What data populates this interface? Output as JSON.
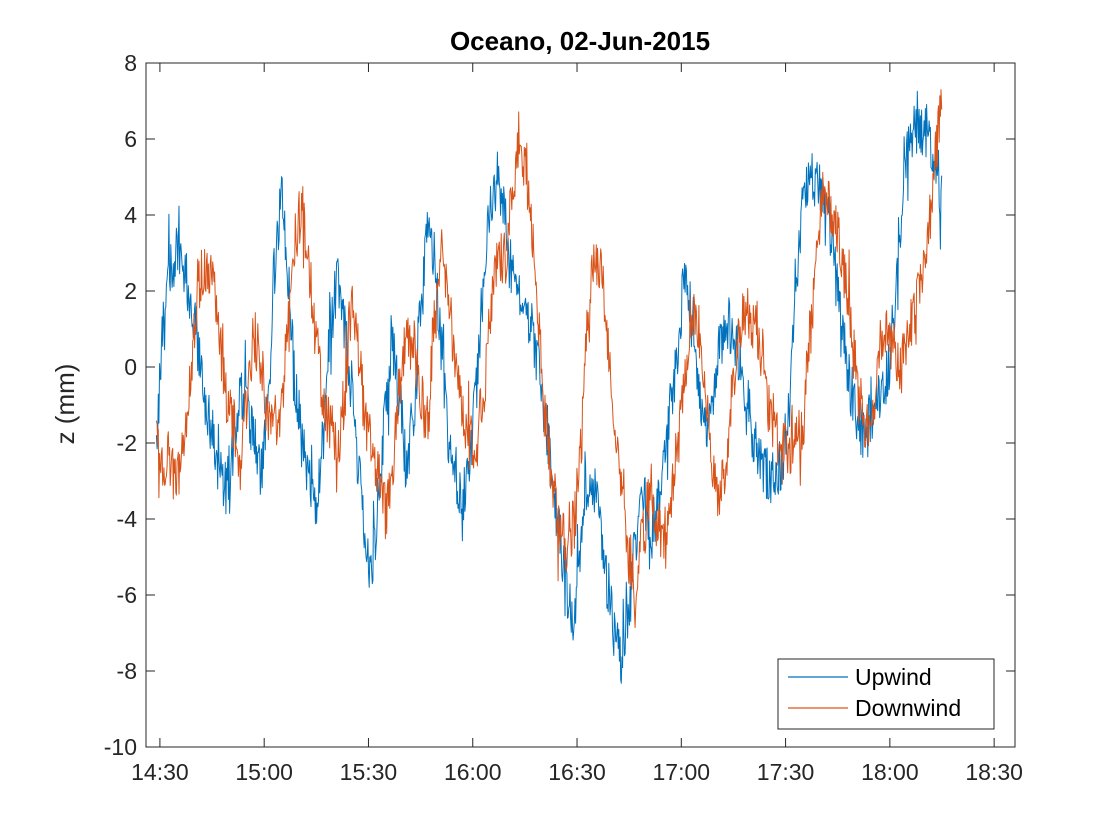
{
  "chart_data": {
    "type": "line",
    "title": "Oceano, 02-Jun-2015",
    "xlabel": "",
    "ylabel": "z (mm)",
    "x_unit": "time of day (HH:MM)",
    "xlim": [
      "14:26",
      "18:36"
    ],
    "ylim": [
      -10,
      8
    ],
    "x_ticks": [
      "14:30",
      "15:00",
      "15:30",
      "16:00",
      "16:30",
      "17:00",
      "17:30",
      "18:00",
      "18:30"
    ],
    "y_ticks": [
      -10,
      -8,
      -6,
      -4,
      -2,
      0,
      2,
      4,
      6,
      8
    ],
    "grid": false,
    "legend": "bottom-right",
    "series": [
      {
        "name": "Upwind",
        "color": "#0072BD",
        "x": [
          "14:29",
          "14:31",
          "14:33",
          "14:35",
          "14:37",
          "14:39",
          "14:41",
          "14:43",
          "14:45",
          "14:47",
          "14:49",
          "14:51",
          "14:53",
          "14:55",
          "14:57",
          "14:59",
          "15:01",
          "15:03",
          "15:05",
          "15:07",
          "15:09",
          "15:11",
          "15:13",
          "15:15",
          "15:17",
          "15:19",
          "15:21",
          "15:23",
          "15:25",
          "15:27",
          "15:29",
          "15:31",
          "15:33",
          "15:35",
          "15:37",
          "15:39",
          "15:41",
          "15:43",
          "15:45",
          "15:47",
          "15:49",
          "15:51",
          "15:53",
          "15:55",
          "15:57",
          "15:59",
          "16:01",
          "16:03",
          "16:05",
          "16:07",
          "16:09",
          "16:11",
          "16:13",
          "16:15",
          "16:17",
          "16:19",
          "16:21",
          "16:23",
          "16:25",
          "16:27",
          "16:29",
          "16:31",
          "16:33",
          "16:35",
          "16:37",
          "16:39",
          "16:41",
          "16:43",
          "16:45",
          "16:47",
          "16:49",
          "16:51",
          "16:53",
          "16:55",
          "16:57",
          "16:59",
          "17:01",
          "17:03",
          "17:05",
          "17:07",
          "17:09",
          "17:11",
          "17:13",
          "17:15",
          "17:17",
          "17:19",
          "17:21",
          "17:23",
          "17:25",
          "17:27",
          "17:29",
          "17:31",
          "17:33",
          "17:35",
          "17:37",
          "17:39",
          "17:41",
          "17:43",
          "17:45",
          "17:47",
          "17:49",
          "17:51",
          "17:53",
          "17:55",
          "17:57",
          "17:59",
          "18:01",
          "18:03",
          "18:05",
          "18:07",
          "18:09",
          "18:11",
          "18:13",
          "18:15"
        ],
        "y": [
          -1.5,
          1.0,
          2.6,
          3.0,
          2.5,
          1.8,
          0.5,
          -0.8,
          -1.8,
          -2.6,
          -3.2,
          -2.2,
          -0.8,
          -1.0,
          -2.0,
          -2.8,
          -1.0,
          2.5,
          4.5,
          2.2,
          -0.5,
          -2.0,
          -3.0,
          -3.6,
          -2.0,
          1.0,
          2.2,
          1.2,
          -0.5,
          -2.5,
          -4.8,
          -5.2,
          -3.5,
          -1.2,
          0.5,
          -0.8,
          -2.6,
          -1.2,
          1.5,
          3.8,
          2.8,
          0.5,
          -1.8,
          -2.8,
          -3.4,
          -2.5,
          -0.5,
          1.8,
          4.2,
          5.0,
          4.0,
          2.6,
          2.2,
          1.8,
          1.0,
          0.0,
          -1.5,
          -3.0,
          -4.5,
          -6.0,
          -6.6,
          -5.0,
          -3.0,
          -3.4,
          -4.4,
          -5.8,
          -7.0,
          -7.8,
          -6.2,
          -4.5,
          -3.4,
          -4.5,
          -3.8,
          -2.5,
          -1.0,
          0.5,
          2.4,
          1.5,
          -0.5,
          -1.6,
          -0.8,
          0.5,
          1.2,
          0.8,
          0.2,
          -1.0,
          -2.0,
          -2.5,
          -2.8,
          -3.0,
          -2.5,
          -1.2,
          2.0,
          4.5,
          5.0,
          4.8,
          4.5,
          3.5,
          2.0,
          0.5,
          -0.8,
          -1.5,
          -1.8,
          -1.2,
          -0.8,
          -0.3,
          1.0,
          3.5,
          5.8,
          6.2,
          6.3,
          6.2,
          5.5,
          4.5
        ]
      },
      {
        "name": "Downwind",
        "color": "#D95319",
        "x": [
          "14:29",
          "14:31",
          "14:33",
          "14:35",
          "14:37",
          "14:39",
          "14:41",
          "14:43",
          "14:45",
          "14:47",
          "14:49",
          "14:51",
          "14:53",
          "14:55",
          "14:57",
          "14:59",
          "15:01",
          "15:03",
          "15:05",
          "15:07",
          "15:09",
          "15:11",
          "15:13",
          "15:15",
          "15:17",
          "15:19",
          "15:21",
          "15:23",
          "15:25",
          "15:27",
          "15:29",
          "15:31",
          "15:33",
          "15:35",
          "15:37",
          "15:39",
          "15:41",
          "15:43",
          "15:45",
          "15:47",
          "15:49",
          "15:51",
          "15:53",
          "15:55",
          "15:57",
          "15:59",
          "16:01",
          "16:03",
          "16:05",
          "16:07",
          "16:09",
          "16:11",
          "16:13",
          "16:15",
          "16:17",
          "16:19",
          "16:21",
          "16:23",
          "16:25",
          "16:27",
          "16:29",
          "16:31",
          "16:33",
          "16:35",
          "16:37",
          "16:39",
          "16:41",
          "16:43",
          "16:45",
          "16:47",
          "16:49",
          "16:51",
          "16:53",
          "16:55",
          "16:57",
          "16:59",
          "17:01",
          "17:03",
          "17:05",
          "17:07",
          "17:09",
          "17:11",
          "17:13",
          "17:15",
          "17:17",
          "17:19",
          "17:21",
          "17:23",
          "17:25",
          "17:27",
          "17:29",
          "17:31",
          "17:33",
          "17:35",
          "17:37",
          "17:39",
          "17:41",
          "17:43",
          "17:45",
          "17:47",
          "17:49",
          "17:51",
          "17:53",
          "17:55",
          "17:57",
          "17:59",
          "18:01",
          "18:03",
          "18:05",
          "18:07",
          "18:09",
          "18:11",
          "18:13",
          "18:15"
        ],
        "y": [
          -2.0,
          -2.5,
          -2.6,
          -3.0,
          -2.0,
          0.0,
          2.2,
          2.5,
          2.2,
          1.0,
          -0.8,
          -1.5,
          -2.5,
          -1.0,
          0.8,
          0.0,
          -1.2,
          -1.5,
          -1.0,
          1.0,
          3.5,
          4.2,
          2.5,
          0.5,
          -0.8,
          -1.5,
          -2.2,
          -1.0,
          1.5,
          0.5,
          -1.0,
          -2.2,
          -3.0,
          -3.8,
          -2.5,
          -0.5,
          0.8,
          0.5,
          -0.8,
          -1.5,
          1.2,
          3.0,
          2.0,
          0.0,
          -1.0,
          -2.0,
          -2.0,
          -0.8,
          1.5,
          3.0,
          2.8,
          4.0,
          6.0,
          5.2,
          3.5,
          1.0,
          -1.5,
          -3.0,
          -4.0,
          -4.8,
          -4.2,
          -2.0,
          1.0,
          3.0,
          2.5,
          0.5,
          -1.5,
          -3.0,
          -5.0,
          -5.8,
          -4.5,
          -3.2,
          -4.0,
          -4.5,
          -3.5,
          -2.0,
          -0.5,
          1.5,
          1.0,
          -1.0,
          -2.8,
          -3.5,
          -2.5,
          -0.5,
          1.2,
          1.5,
          1.0,
          0.5,
          -1.0,
          -1.8,
          -2.0,
          -2.2,
          -1.8,
          -1.5,
          1.0,
          3.0,
          4.5,
          4.2,
          3.5,
          2.5,
          1.0,
          -0.8,
          -1.6,
          -1.0,
          0.5,
          1.0,
          0.5,
          0.0,
          0.5,
          1.5,
          2.5,
          3.5,
          5.5,
          6.8
        ]
      }
    ]
  }
}
